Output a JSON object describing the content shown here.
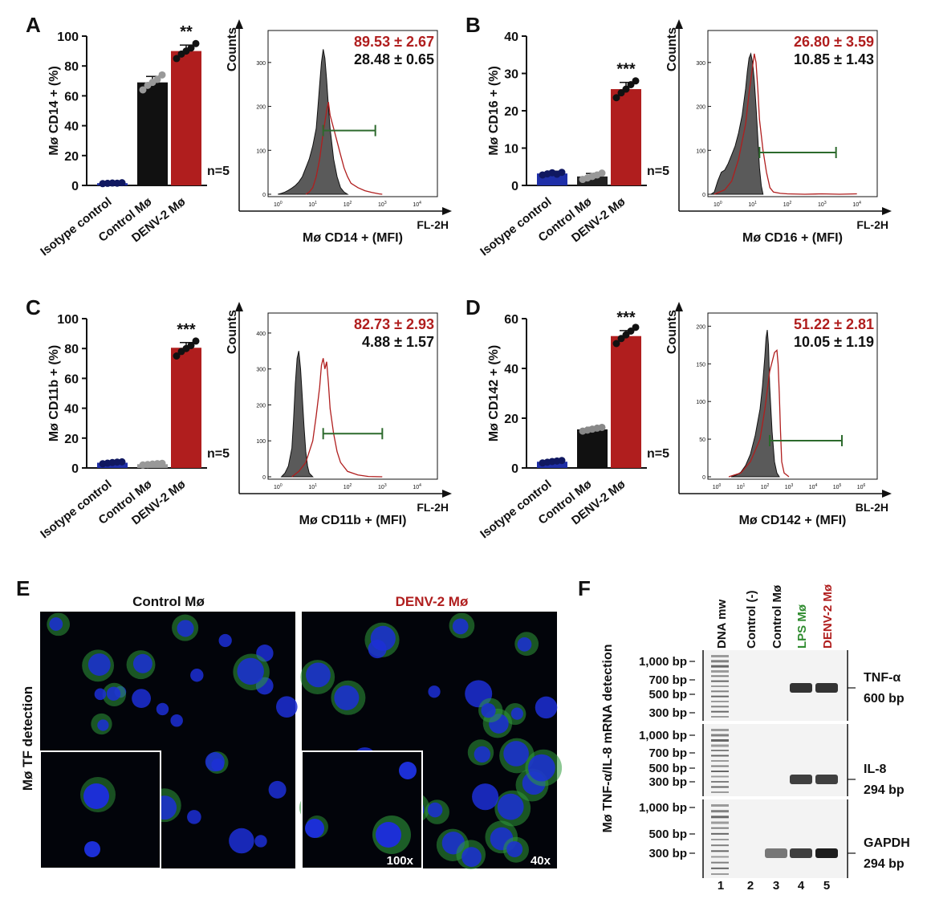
{
  "panels": [
    {
      "letter": "A",
      "bar": {
        "ylabel": "Mø CD14 + (%)",
        "ylim": [
          0,
          100
        ],
        "yticks": [
          0,
          20,
          40,
          60,
          80,
          100
        ],
        "categories": [
          "Isotype control",
          "Control Mø",
          "DENV-2 Mø"
        ],
        "values": [
          1.5,
          69,
          90
        ],
        "errors": [
          0.5,
          4,
          4
        ],
        "points": [
          [
            1.2,
            1.4,
            1.6,
            1.5,
            1.8
          ],
          [
            64,
            67,
            69,
            71,
            74
          ],
          [
            85,
            88,
            90,
            92,
            95
          ]
        ],
        "colors": [
          "#1f2fa8",
          "#111111",
          "#b01e1e"
        ],
        "sig": "**",
        "n": "n=5"
      },
      "hist": {
        "ylabel": "Counts",
        "xlabel": "Mø CD14 + (MFI)",
        "channel": "FL-2H",
        "yticks": [
          0,
          100,
          200,
          300
        ],
        "ymax": 360,
        "xmin_exp": 0,
        "xmax_exp": 4,
        "grey": [
          [
            0,
            0
          ],
          [
            0.1,
            2
          ],
          [
            0.2,
            5
          ],
          [
            0.3,
            9
          ],
          [
            0.4,
            14
          ],
          [
            0.5,
            20
          ],
          [
            0.6,
            28
          ],
          [
            0.7,
            40
          ],
          [
            0.8,
            60
          ],
          [
            0.9,
            80
          ],
          [
            1.0,
            110
          ],
          [
            1.1,
            150
          ],
          [
            1.15,
            200
          ],
          [
            1.2,
            250
          ],
          [
            1.25,
            300
          ],
          [
            1.3,
            330
          ],
          [
            1.35,
            310
          ],
          [
            1.4,
            260
          ],
          [
            1.45,
            200
          ],
          [
            1.5,
            150
          ],
          [
            1.6,
            80
          ],
          [
            1.7,
            40
          ],
          [
            1.8,
            15
          ],
          [
            1.9,
            5
          ],
          [
            2.0,
            0
          ]
        ],
        "red": [
          [
            0.8,
            0
          ],
          [
            0.9,
            5
          ],
          [
            1.0,
            15
          ],
          [
            1.1,
            40
          ],
          [
            1.2,
            80
          ],
          [
            1.3,
            140
          ],
          [
            1.4,
            190
          ],
          [
            1.45,
            210
          ],
          [
            1.5,
            180
          ],
          [
            1.6,
            150
          ],
          [
            1.7,
            120
          ],
          [
            1.8,
            90
          ],
          [
            1.9,
            60
          ],
          [
            2.0,
            40
          ],
          [
            2.1,
            25
          ],
          [
            2.3,
            15
          ],
          [
            2.5,
            8
          ],
          [
            2.7,
            4
          ],
          [
            2.9,
            1
          ],
          [
            3.0,
            0
          ]
        ],
        "gate": [
          1.3,
          2.8
        ],
        "gate_y": 145,
        "stat_red": "89.53 ± 2.67",
        "stat_black": "28.48 ± 0.65"
      }
    },
    {
      "letter": "B",
      "bar": {
        "ylabel": "Mø CD16 + (%)",
        "ylim": [
          0,
          40
        ],
        "yticks": [
          0,
          10,
          20,
          30,
          40
        ],
        "categories": [
          "Isotype control",
          "Control Mø",
          "DENV-2 Mø"
        ],
        "values": [
          3.2,
          2.4,
          25.8
        ],
        "errors": [
          0.6,
          0.8,
          1.8
        ],
        "points": [
          [
            2.8,
            3.1,
            3.4,
            3.0,
            3.5
          ],
          [
            1.6,
            2.0,
            2.4,
            2.8,
            3.3
          ],
          [
            23.5,
            24.8,
            25.8,
            27.0,
            28.0
          ]
        ],
        "colors": [
          "#1f2fa8",
          "#222222",
          "#b01e1e"
        ],
        "sig": "***",
        "n": "n=5"
      },
      "hist": {
        "ylabel": "Counts",
        "xlabel": "Mø CD16 + (MFI)",
        "channel": "FL-2H",
        "yticks": [
          0,
          100,
          200,
          300
        ],
        "ymax": 360,
        "xmin_exp": 0,
        "xmax_exp": 4,
        "grey": [
          [
            -0.2,
            0
          ],
          [
            -0.1,
            5
          ],
          [
            0,
            30
          ],
          [
            0.1,
            50
          ],
          [
            0.2,
            55
          ],
          [
            0.3,
            70
          ],
          [
            0.4,
            90
          ],
          [
            0.5,
            110
          ],
          [
            0.6,
            140
          ],
          [
            0.7,
            180
          ],
          [
            0.8,
            240
          ],
          [
            0.85,
            280
          ],
          [
            0.9,
            310
          ],
          [
            0.95,
            320
          ],
          [
            1.0,
            300
          ],
          [
            1.05,
            260
          ],
          [
            1.1,
            200
          ],
          [
            1.15,
            130
          ],
          [
            1.2,
            60
          ],
          [
            1.25,
            20
          ],
          [
            1.3,
            0
          ]
        ],
        "red": [
          [
            -0.1,
            0
          ],
          [
            0.2,
            10
          ],
          [
            0.4,
            30
          ],
          [
            0.6,
            80
          ],
          [
            0.8,
            160
          ],
          [
            0.9,
            230
          ],
          [
            1.0,
            290
          ],
          [
            1.05,
            320
          ],
          [
            1.1,
            300
          ],
          [
            1.15,
            240
          ],
          [
            1.2,
            170
          ],
          [
            1.3,
            100
          ],
          [
            1.4,
            50
          ],
          [
            1.5,
            15
          ],
          [
            1.6,
            5
          ],
          [
            1.8,
            2
          ],
          [
            2.0,
            1
          ],
          [
            2.5,
            0
          ],
          [
            3.0,
            1
          ],
          [
            3.5,
            0
          ],
          [
            4.0,
            1
          ]
        ],
        "gate": [
          1.2,
          3.4
        ],
        "gate_y": 95,
        "stat_red": "26.80 ± 3.59",
        "stat_black": "10.85 ± 1.43"
      }
    },
    {
      "letter": "C",
      "bar": {
        "ylabel": "Mø CD11b + (%)",
        "ylim": [
          0,
          100
        ],
        "yticks": [
          0,
          20,
          40,
          60,
          80,
          100
        ],
        "categories": [
          "Isotype control",
          "Control Mø",
          "DENV-2 Mø"
        ],
        "values": [
          3.5,
          2.5,
          80.5
        ],
        "errors": [
          0.8,
          0.6,
          3.5
        ],
        "points": [
          [
            2.8,
            3.2,
            3.6,
            3.9,
            4.1
          ],
          [
            2.0,
            2.3,
            2.6,
            2.9,
            3.1
          ],
          [
            75,
            78,
            80,
            82,
            85
          ]
        ],
        "colors": [
          "#1f2fa8",
          "#999999",
          "#b01e1e"
        ],
        "sig": "***",
        "n": "n=5"
      },
      "hist": {
        "ylabel": "Counts",
        "xlabel": "Mø CD11b + (MFI)",
        "channel": "FL-2H",
        "yticks": [
          0,
          100,
          200,
          300,
          400
        ],
        "ymax": 440,
        "xmin_exp": 0,
        "xmax_exp": 4,
        "grey": [
          [
            0.1,
            0
          ],
          [
            0.2,
            10
          ],
          [
            0.3,
            30
          ],
          [
            0.4,
            80
          ],
          [
            0.45,
            160
          ],
          [
            0.5,
            260
          ],
          [
            0.55,
            330
          ],
          [
            0.6,
            350
          ],
          [
            0.65,
            300
          ],
          [
            0.7,
            220
          ],
          [
            0.75,
            140
          ],
          [
            0.8,
            70
          ],
          [
            0.85,
            30
          ],
          [
            0.9,
            10
          ],
          [
            1.0,
            0
          ]
        ],
        "red": [
          [
            0.4,
            0
          ],
          [
            0.6,
            15
          ],
          [
            0.8,
            40
          ],
          [
            1.0,
            100
          ],
          [
            1.1,
            170
          ],
          [
            1.2,
            250
          ],
          [
            1.25,
            310
          ],
          [
            1.3,
            330
          ],
          [
            1.35,
            300
          ],
          [
            1.4,
            320
          ],
          [
            1.45,
            260
          ],
          [
            1.5,
            190
          ],
          [
            1.6,
            120
          ],
          [
            1.7,
            70
          ],
          [
            1.8,
            40
          ],
          [
            2.0,
            15
          ],
          [
            2.3,
            5
          ],
          [
            2.6,
            1
          ],
          [
            3.0,
            0
          ]
        ],
        "gate": [
          1.3,
          3.0
        ],
        "gate_y": 120,
        "stat_red": "82.73 ± 2.93",
        "stat_black": "4.88 ± 1.57"
      }
    },
    {
      "letter": "D",
      "bar": {
        "ylabel": "Mø CD142 + (%)",
        "ylim": [
          0,
          60
        ],
        "yticks": [
          0,
          20,
          40,
          60
        ],
        "categories": [
          "Isotype control",
          "Control Mø",
          "DENV-2 Mø"
        ],
        "values": [
          2.5,
          15.5,
          53
        ],
        "errors": [
          0.5,
          0.8,
          2.2
        ],
        "points": [
          [
            2.0,
            2.3,
            2.6,
            2.8,
            3.0
          ],
          [
            14.8,
            15.2,
            15.6,
            16.0,
            16.3
          ],
          [
            50,
            52,
            53.5,
            55,
            56.5
          ]
        ],
        "colors": [
          "#1f2fa8",
          "#111111",
          "#b01e1e"
        ],
        "sig": "***",
        "n": "n=5"
      },
      "hist": {
        "ylabel": "Counts",
        "xlabel": "Mø CD142 + (MFI)",
        "channel": "BL-2H",
        "yticks": [
          0,
          50,
          100,
          150,
          200
        ],
        "ymax": 210,
        "xmin_exp": 0,
        "xmax_exp": 6,
        "grey": [
          [
            0.6,
            0
          ],
          [
            0.8,
            2
          ],
          [
            1.0,
            6
          ],
          [
            1.2,
            15
          ],
          [
            1.4,
            30
          ],
          [
            1.6,
            55
          ],
          [
            1.8,
            90
          ],
          [
            1.9,
            120
          ],
          [
            2.0,
            160
          ],
          [
            2.05,
            185
          ],
          [
            2.1,
            195
          ],
          [
            2.15,
            175
          ],
          [
            2.2,
            120
          ],
          [
            2.3,
            60
          ],
          [
            2.4,
            20
          ],
          [
            2.5,
            5
          ],
          [
            2.6,
            0
          ]
        ],
        "red": [
          [
            0.5,
            0
          ],
          [
            1.0,
            5
          ],
          [
            1.4,
            20
          ],
          [
            1.8,
            50
          ],
          [
            2.0,
            90
          ],
          [
            2.2,
            140
          ],
          [
            2.4,
            165
          ],
          [
            2.5,
            168
          ],
          [
            2.55,
            150
          ],
          [
            2.6,
            110
          ],
          [
            2.65,
            60
          ],
          [
            2.7,
            20
          ],
          [
            2.8,
            5
          ],
          [
            3.0,
            0
          ]
        ],
        "gate": [
          2.2,
          5.2
        ],
        "gate_y": 48,
        "stat_red": "51.22 ± 2.81",
        "stat_black": "10.05 ± 1.19"
      }
    }
  ],
  "panel_e": {
    "letter": "E",
    "ylabel": "Mø TF detection",
    "left_title": "Control Mø",
    "right_title": "DENV-2 Mø",
    "mag_inset": "100x",
    "mag_main": "40x"
  },
  "panel_f": {
    "letter": "F",
    "ylabel": "Mø TNF-α/IL-8 mRNA detection",
    "lanes": [
      "DNA mw",
      "Control (-)",
      "Control Mø",
      "LPS Mø",
      "DENV-2 Mø"
    ],
    "lane_colors": [
      "#111111",
      "#111111",
      "#111111",
      "#2e8b2e",
      "#b01e1e"
    ],
    "lane_numbers": [
      "1",
      "2",
      "3",
      "4",
      "5"
    ],
    "gel1": {
      "ladder": [
        "1,000 bp",
        "700 bp",
        "500 bp",
        "300 bp"
      ],
      "gene": "TNF-α",
      "size": "600 bp"
    },
    "gel2": {
      "ladder": [
        "1,000 bp",
        "700 bp",
        "500 bp",
        "300 bp"
      ],
      "gene": "IL-8",
      "size": "294 bp"
    },
    "gel3": {
      "ladder": [
        "1,000 bp",
        "500 bp",
        "300 bp"
      ],
      "gene": "GAPDH",
      "size": "294 bp"
    }
  },
  "chart_data": [
    {
      "type": "bar",
      "ylabel": "Mø CD14 + (%)",
      "ylim": [
        0,
        100
      ],
      "categories": [
        "Isotype control",
        "Control Mø",
        "DENV-2 Mø"
      ],
      "values": [
        1.5,
        69,
        90
      ]
    },
    {
      "type": "bar",
      "ylabel": "Mø CD16 + (%)",
      "ylim": [
        0,
        40
      ],
      "categories": [
        "Isotype control",
        "Control Mø",
        "DENV-2 Mø"
      ],
      "values": [
        3.2,
        2.4,
        25.8
      ]
    },
    {
      "type": "bar",
      "ylabel": "Mø CD11b + (%)",
      "ylim": [
        0,
        100
      ],
      "categories": [
        "Isotype control",
        "Control Mø",
        "DENV-2 Mø"
      ],
      "values": [
        3.5,
        2.5,
        80.5
      ]
    },
    {
      "type": "bar",
      "ylabel": "Mø CD142 + (%)",
      "ylim": [
        0,
        60
      ],
      "categories": [
        "Isotype control",
        "Control Mø",
        "DENV-2 Mø"
      ],
      "values": [
        2.5,
        15.5,
        53
      ]
    }
  ]
}
